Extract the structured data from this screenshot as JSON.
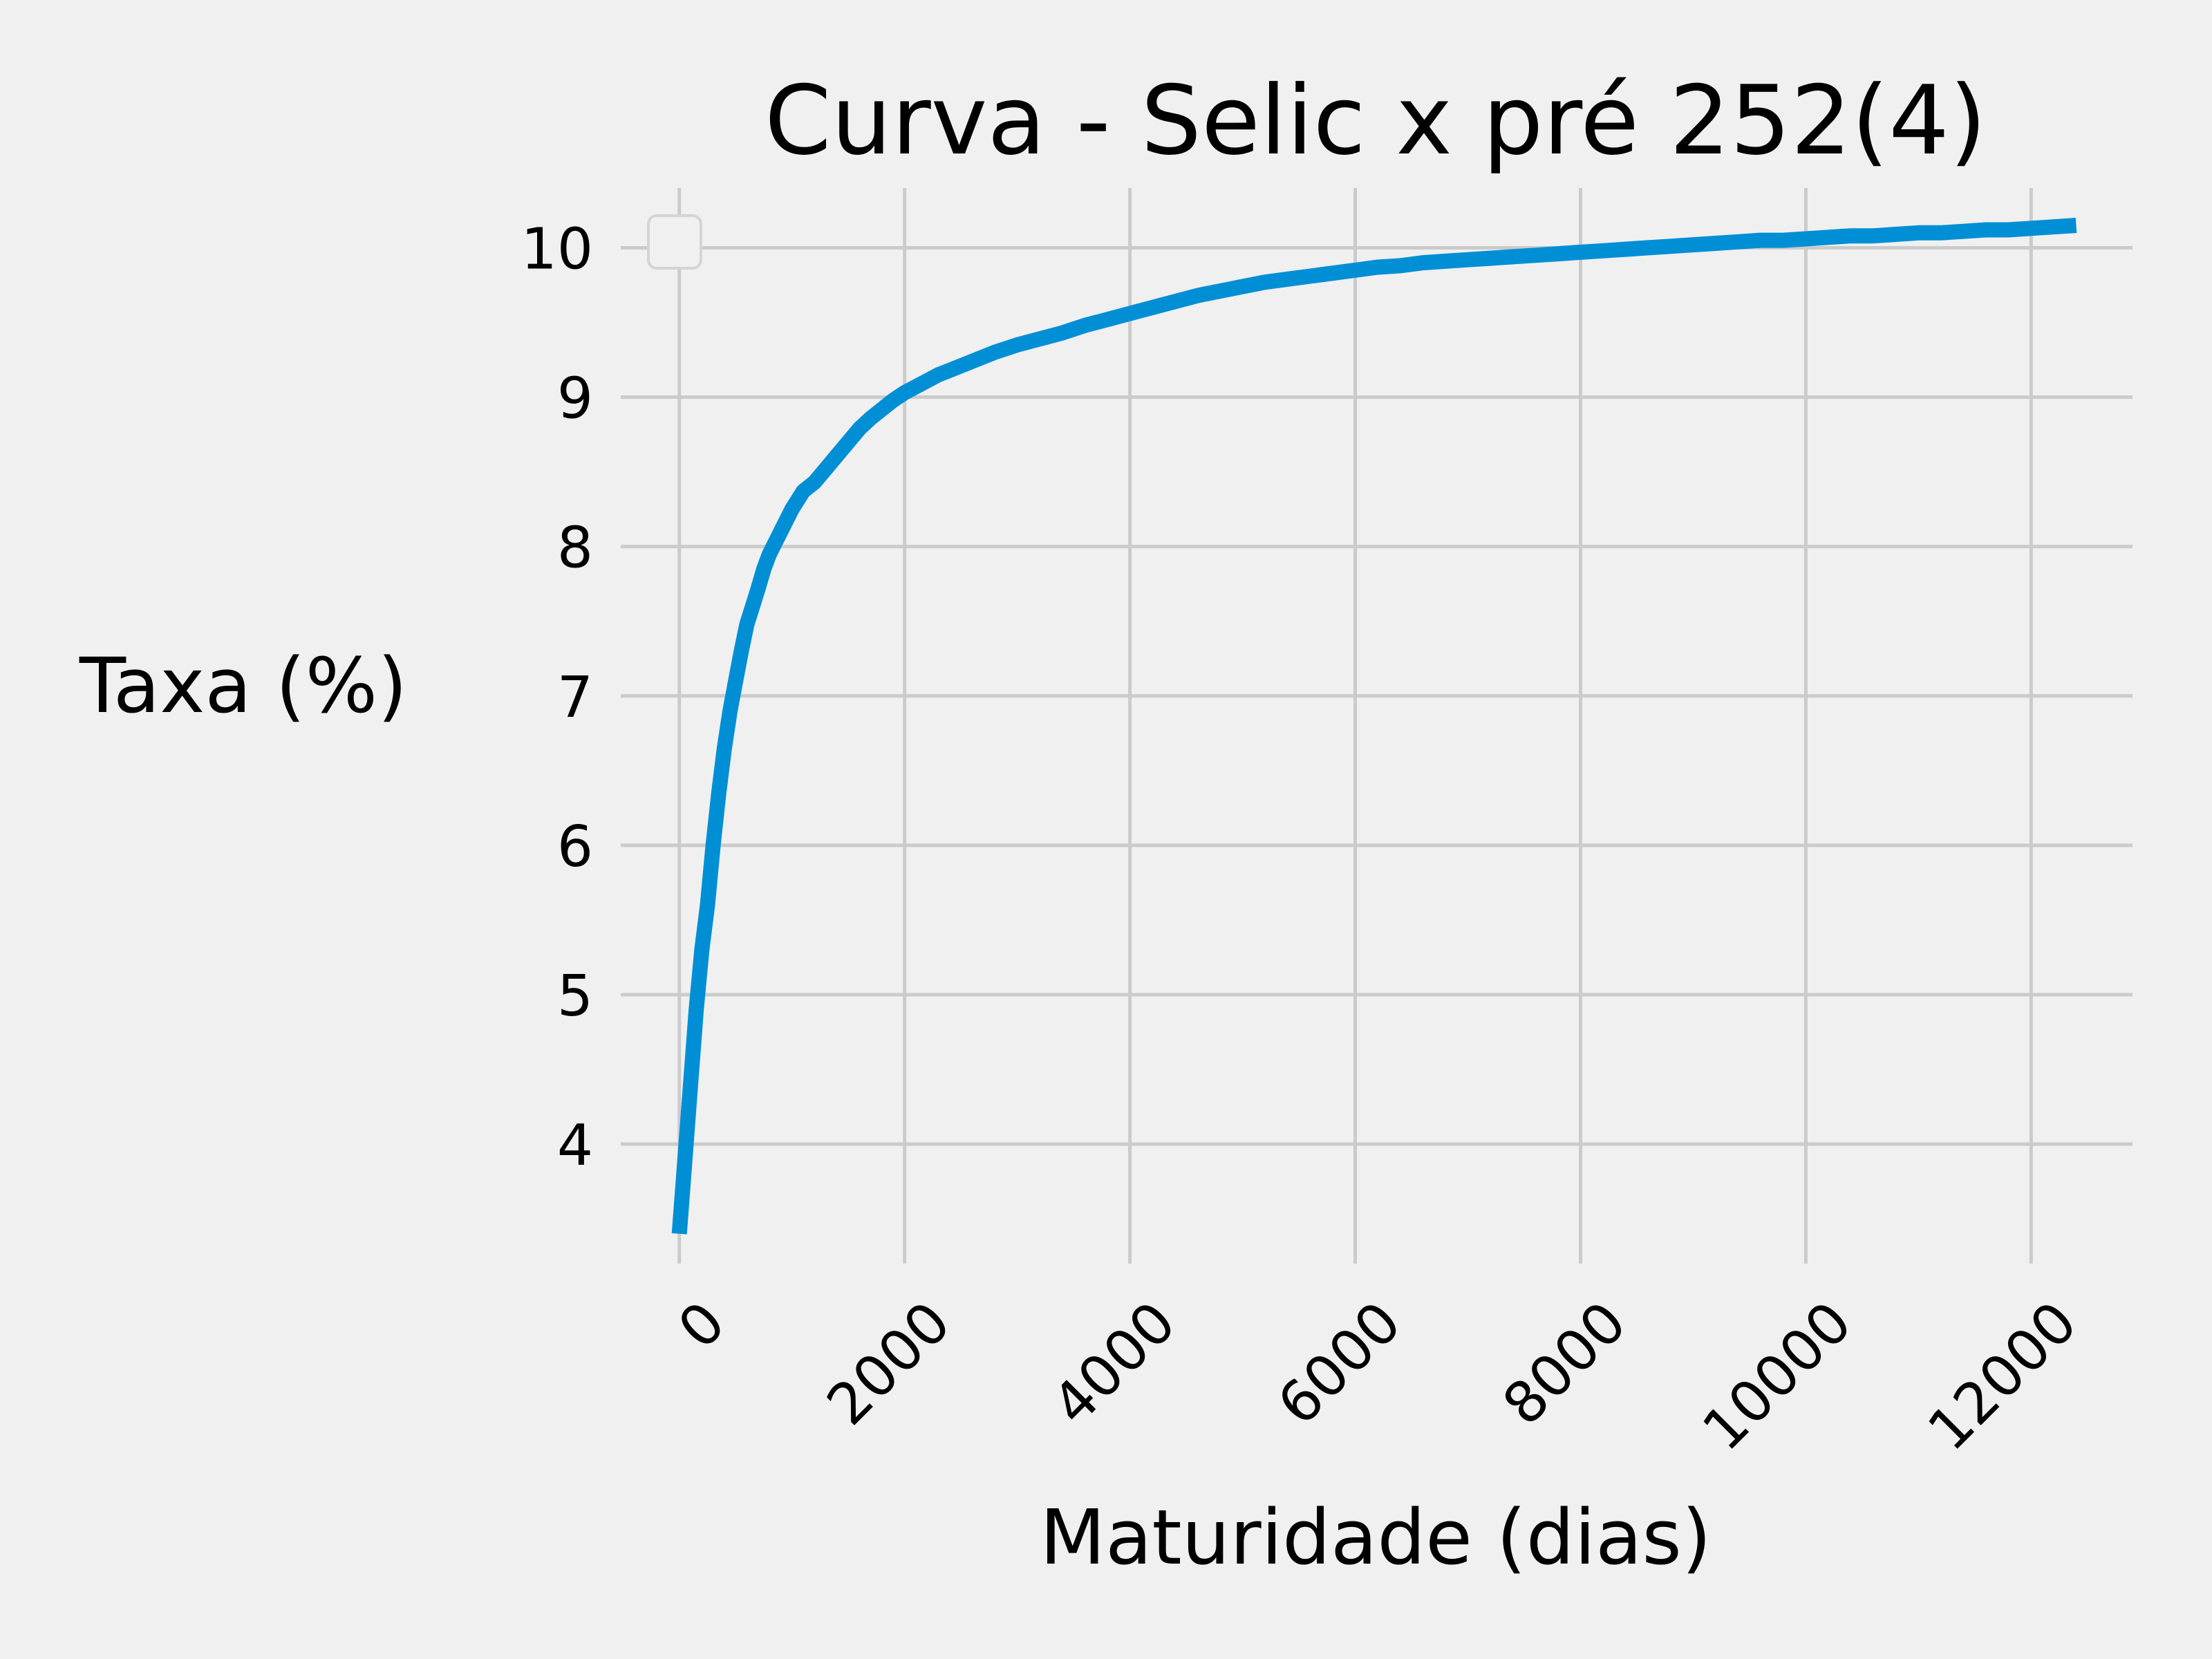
{
  "chart_data": {
    "type": "line",
    "title": "Curva - Selic x pré 252(4)",
    "xlabel": "Maturidade (dias)",
    "ylabel": "Taxa (%)",
    "xlim": [
      -520,
      12900
    ],
    "ylim": [
      3.2,
      10.4
    ],
    "xticks": [
      0,
      2000,
      4000,
      6000,
      8000,
      10000,
      12000
    ],
    "yticks": [
      4,
      5,
      6,
      7,
      8,
      9,
      10
    ],
    "grid": true,
    "legend": "top-left (empty)",
    "colors": {
      "line": "#008fd5",
      "background": "#f0f0f0",
      "grid": "#cbcbcb"
    },
    "series": [
      {
        "x": [
          0,
          20,
          60,
          100,
          150,
          200,
          250,
          300,
          350,
          400,
          450,
          500,
          550,
          600,
          650,
          700,
          750,
          800,
          900,
          1000,
          1100,
          1200,
          1300,
          1400,
          1500,
          1600,
          1700,
          1800,
          1900,
          2000,
          2100,
          2200,
          2300,
          2400,
          2500,
          2600,
          2800,
          3000,
          3200,
          3400,
          3600,
          3800,
          4000,
          4200,
          4400,
          4600,
          4800,
          5000,
          5200,
          5400,
          5600,
          5800,
          6000,
          6200,
          6400,
          6600,
          6800,
          7000,
          7200,
          7400,
          7600,
          7800,
          8000,
          8200,
          8400,
          8600,
          8800,
          9000,
          9200,
          9400,
          9600,
          9800,
          10000,
          10200,
          10400,
          10600,
          10800,
          11000,
          11200,
          11400,
          11600,
          11800,
          12000,
          12200,
          12400
        ],
        "y": [
          3.4,
          3.6,
          4.0,
          4.4,
          4.9,
          5.3,
          5.6,
          6.0,
          6.35,
          6.65,
          6.9,
          7.1,
          7.3,
          7.48,
          7.6,
          7.72,
          7.85,
          7.95,
          8.1,
          8.25,
          8.37,
          8.43,
          8.52,
          8.61,
          8.7,
          8.79,
          8.86,
          8.92,
          8.98,
          9.03,
          9.07,
          9.11,
          9.15,
          9.18,
          9.21,
          9.24,
          9.3,
          9.35,
          9.39,
          9.43,
          9.48,
          9.52,
          9.56,
          9.6,
          9.64,
          9.68,
          9.71,
          9.74,
          9.77,
          9.79,
          9.81,
          9.83,
          9.85,
          9.87,
          9.88,
          9.9,
          9.91,
          9.92,
          9.93,
          9.94,
          9.95,
          9.96,
          9.97,
          9.98,
          9.99,
          10.0,
          10.01,
          10.02,
          10.03,
          10.04,
          10.05,
          10.05,
          10.06,
          10.07,
          10.08,
          10.08,
          10.09,
          10.1,
          10.1,
          10.11,
          10.12,
          10.12,
          10.13,
          10.14,
          10.15
        ]
      }
    ]
  }
}
